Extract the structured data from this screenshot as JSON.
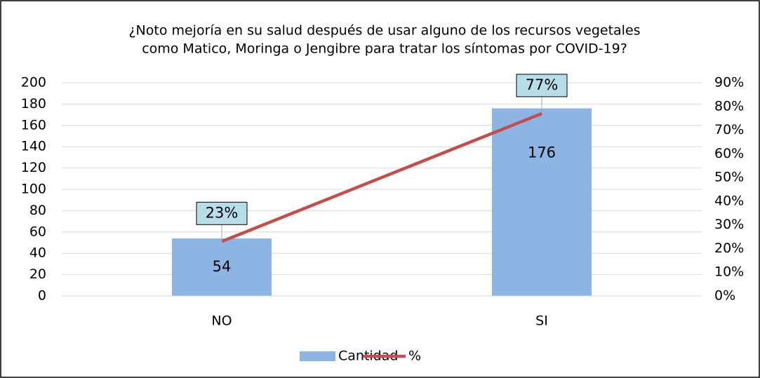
{
  "chart_data": {
    "type": "bar",
    "title": [
      "¿Noto mejoría en su salud después de usar alguno de los recursos vegetales",
      "como Matico, Moringa o Jengibre para tratar los síntomas por COVID-19?"
    ],
    "categories": [
      "NO",
      "SI"
    ],
    "series": [
      {
        "name": "Cantidad",
        "color": "#8eb4e3",
        "values": [
          54,
          176
        ]
      },
      {
        "name": "%",
        "color": "#c0504d",
        "axis": "y2",
        "type": "line",
        "values": [
          23,
          77
        ],
        "value_labels": [
          "23%",
          "77%"
        ]
      }
    ],
    "ylim": [
      0,
      200
    ],
    "yticks": [
      0,
      20,
      40,
      60,
      80,
      100,
      120,
      140,
      160,
      180,
      200
    ],
    "y2lim": [
      0,
      90
    ],
    "y2ticks": [
      {
        "value": 0,
        "label": "0%"
      },
      {
        "value": 10,
        "label": "10%"
      },
      {
        "value": 20,
        "label": "20%"
      },
      {
        "value": 30,
        "label": "30%"
      },
      {
        "value": 40,
        "label": "40%"
      },
      {
        "value": 50,
        "label": "50%"
      },
      {
        "value": 60,
        "label": "60%"
      },
      {
        "value": 70,
        "label": "70%"
      },
      {
        "value": 80,
        "label": "80%"
      },
      {
        "value": 90,
        "label": "90%"
      }
    ],
    "grid": true,
    "legend": "bottom"
  }
}
